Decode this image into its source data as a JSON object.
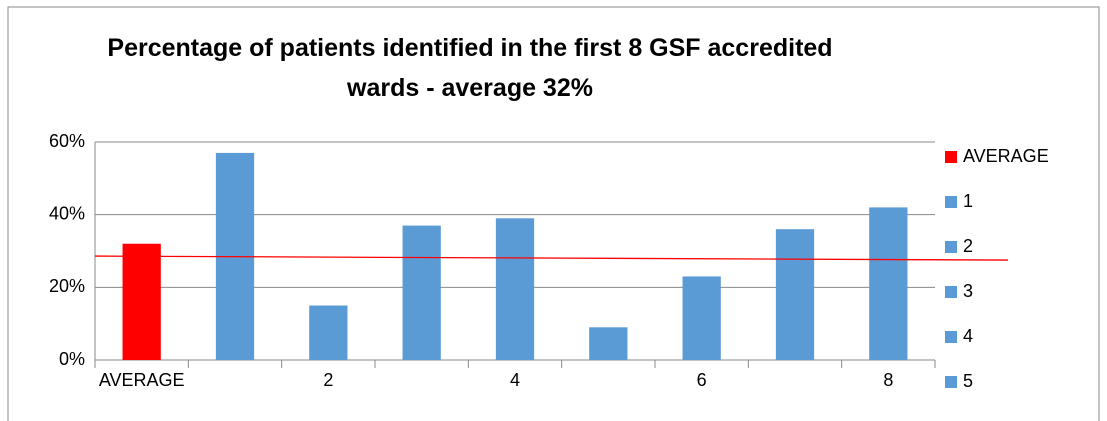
{
  "chart_data": {
    "type": "bar",
    "title": "Percentage of patients identified in the first 8 GSF accredited wards - average 32%",
    "categories": [
      "AVERAGE",
      null,
      "2",
      null,
      "4",
      null,
      "6",
      null,
      "8"
    ],
    "values": [
      32,
      57,
      15,
      37,
      39,
      9,
      23,
      36,
      42
    ],
    "colors": [
      "#ff0000",
      "#5b9bd5",
      "#5b9bd5",
      "#5b9bd5",
      "#5b9bd5",
      "#5b9bd5",
      "#5b9bd5",
      "#5b9bd5",
      "#5b9bd5"
    ],
    "ylim": [
      0,
      60
    ],
    "yticks": [
      {
        "value": 0,
        "label": "0%"
      },
      {
        "value": 20,
        "label": "20%"
      },
      {
        "value": 40,
        "label": "40%"
      },
      {
        "value": 60,
        "label": "60%"
      }
    ],
    "grid": true,
    "trendline": {
      "color": "#ff0000",
      "values": [
        28.6,
        27.5
      ]
    },
    "legend": {
      "position": "right",
      "entries": [
        {
          "name": "AVERAGE",
          "color": "#ff0000"
        },
        {
          "name": "1",
          "color": "#5b9bd5"
        },
        {
          "name": "2",
          "color": "#5b9bd5"
        },
        {
          "name": "3",
          "color": "#5b9bd5"
        },
        {
          "name": "4",
          "color": "#5b9bd5"
        },
        {
          "name": "5",
          "color": "#5b9bd5"
        }
      ]
    }
  }
}
